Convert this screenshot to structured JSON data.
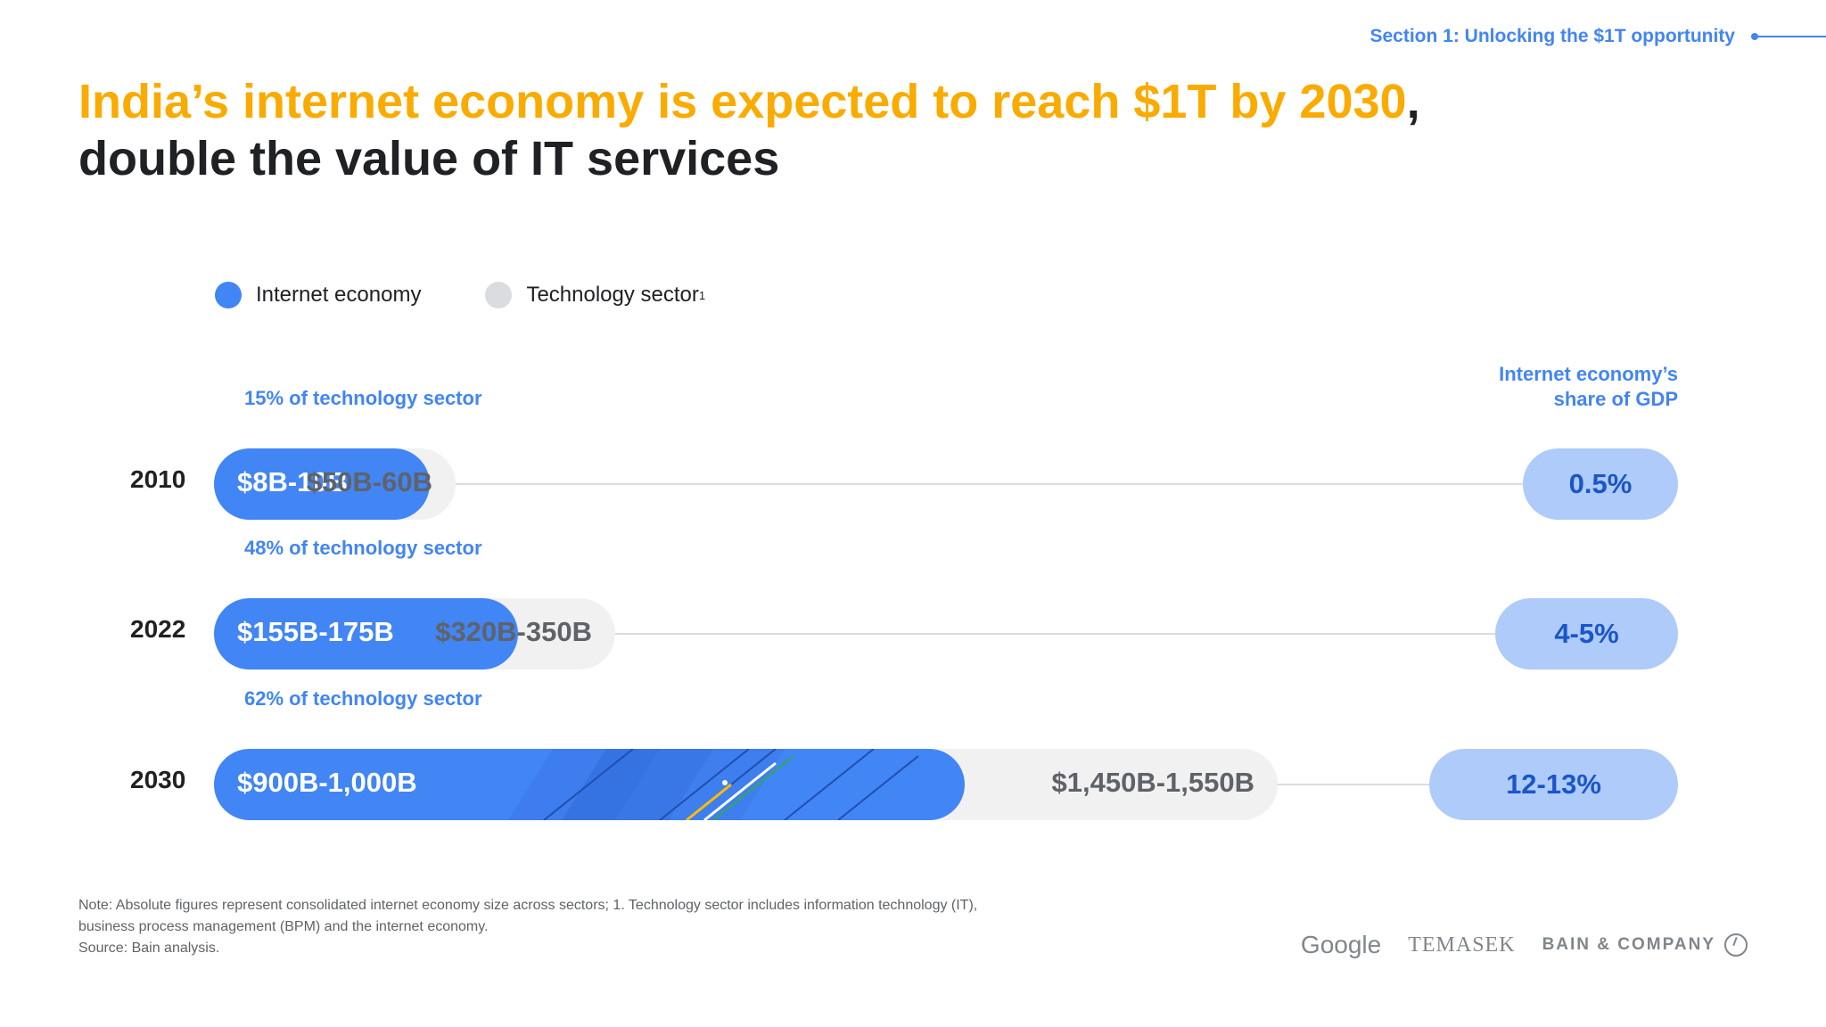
{
  "header": {
    "section": "Section 1: Unlocking the $1T opportunity"
  },
  "title": {
    "highlight": "India’s internet economy is expected to reach $1T by 2030",
    "comma": ",",
    "line2": "double the value of IT services"
  },
  "legend": {
    "internet": "Internet economy",
    "tech": "Technology sector",
    "tech_sup": "1"
  },
  "gdp_header": {
    "line1": "Internet economy’s",
    "line2": "share of GDP"
  },
  "colors": {
    "internet": "#4285f4",
    "tech": "#f1f1f1",
    "gdp": "#aecbfa",
    "title_highlight": "#f9ab00"
  },
  "chart_data": {
    "type": "bar",
    "orientation": "horizontal",
    "categories": [
      "2010",
      "2022",
      "2030"
    ],
    "series": [
      {
        "name": "Internet economy",
        "labels": [
          "$8B-10B",
          "$155B-175B",
          "$900B-1,000B"
        ],
        "values_low": [
          8,
          155,
          900
        ],
        "values_high": [
          10,
          175,
          1000
        ]
      },
      {
        "name": "Technology sector",
        "labels": [
          "$50B-60B",
          "$320B-350B",
          "$1,450B-1,550B"
        ],
        "values_low": [
          50,
          320,
          1450
        ],
        "values_high": [
          60,
          350,
          1550
        ]
      }
    ],
    "share_labels": [
      "15% of technology sector",
      "48% of technology sector",
      "62% of technology sector"
    ],
    "gdp_share_labels": [
      "0.5%",
      "4-5%",
      "12-13%"
    ]
  },
  "footnote": {
    "line1": "Note: Absolute figures represent consolidated internet economy size across sectors; 1. Technology sector includes information technology (IT),",
    "line2": "business process management (BPM) and the internet economy.",
    "line3": "Source: Bain analysis."
  },
  "logos": {
    "google": "Google",
    "temasek": "TEMASEK",
    "bain": "BAIN & COMPANY"
  }
}
